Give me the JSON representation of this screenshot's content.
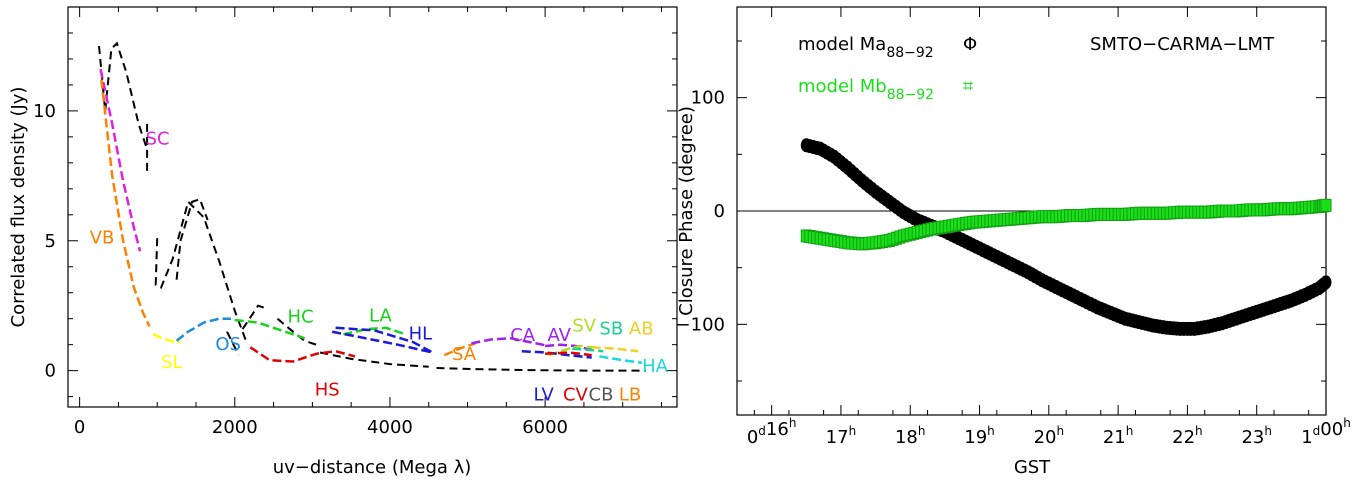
{
  "chart_data": [
    {
      "type": "line",
      "xlabel": "uv−distance (Mega λ)",
      "ylabel": "Correlated flux density (Jy)",
      "xlim": [
        -150,
        7700
      ],
      "ylim": [
        -1.4,
        14.0
      ],
      "xticks": [
        0,
        2000,
        4000,
        6000
      ],
      "yticks": [
        0,
        5,
        10
      ],
      "xtick_labels": [
        "0",
        "2000",
        "4000",
        "6000"
      ],
      "ytick_labels": [
        "0",
        "5",
        "10"
      ],
      "baselines": [
        {
          "label": "SC",
          "color": "#e020e0",
          "label_at": [
            850,
            8.7
          ],
          "points": [
            [
              270,
              11.6
            ],
            [
              420,
              9.5
            ],
            [
              560,
              7.3
            ],
            [
              700,
              5.5
            ],
            [
              780,
              4.6
            ]
          ]
        },
        {
          "label": "VB",
          "color": "#ff8000",
          "label_at": [
            130,
            4.9
          ],
          "points": [
            [
              280,
              11.2
            ],
            [
              420,
              7.5
            ],
            [
              560,
              5.0
            ],
            [
              700,
              3.2
            ],
            [
              820,
              2.2
            ],
            [
              900,
              1.7
            ]
          ]
        },
        {
          "label": "SL",
          "color": "#ffff00",
          "label_at": [
            1050,
            0.1
          ],
          "points": [
            [
              950,
              1.4
            ],
            [
              1100,
              1.2
            ],
            [
              1250,
              1.1
            ],
            [
              1300,
              1.1
            ]
          ]
        },
        {
          "label": "OS",
          "color": "#1a8cd8",
          "label_at": [
            1750,
            0.8
          ],
          "points": [
            [
              1250,
              1.15
            ],
            [
              1400,
              1.5
            ],
            [
              1600,
              1.85
            ],
            [
              1800,
              2.0
            ],
            [
              1950,
              2.0
            ]
          ]
        },
        {
          "label": "HC",
          "color": "#19d219",
          "label_at": [
            2680,
            1.85
          ],
          "points": [
            [
              2000,
              1.95
            ],
            [
              2300,
              1.85
            ],
            [
              2600,
              1.55
            ],
            [
              2900,
              1.25
            ]
          ]
        },
        {
          "label": "HS",
          "color": "#e00000",
          "label_at": [
            3030,
            -0.95
          ],
          "points": [
            [
              2200,
              0.9
            ],
            [
              2450,
              0.4
            ],
            [
              2750,
              0.35
            ],
            [
              3050,
              0.65
            ],
            [
              3300,
              0.75
            ],
            [
              3550,
              0.55
            ]
          ]
        },
        {
          "label": "LA",
          "color": "#19d219",
          "label_at": [
            3730,
            1.9
          ],
          "points": [
            [
              3400,
              1.4
            ],
            [
              3700,
              1.6
            ],
            [
              3950,
              1.65
            ],
            [
              4200,
              1.4
            ]
          ]
        },
        {
          "label": "HL",
          "color": "#1a1ad8",
          "label_at": [
            4240,
            1.2
          ],
          "points": [
            [
              3300,
              1.65
            ],
            [
              3800,
              1.55
            ],
            [
              4300,
              1.1
            ],
            [
              4550,
              0.7
            ],
            [
              4100,
              1.0
            ],
            [
              3600,
              1.3
            ],
            [
              3250,
              1.5
            ]
          ]
        },
        {
          "label": "SA",
          "color": "#ff8000",
          "label_at": [
            4800,
            0.4
          ],
          "points": [
            [
              4700,
              0.6
            ],
            [
              4900,
              0.85
            ],
            [
              5100,
              1.05
            ]
          ]
        },
        {
          "label": "CA",
          "color": "#a020f0",
          "label_at": [
            5550,
            1.15
          ],
          "points": [
            [
              5050,
              1.05
            ],
            [
              5300,
              1.2
            ],
            [
              5550,
              1.25
            ],
            [
              5800,
              1.1
            ],
            [
              6050,
              0.95
            ]
          ]
        },
        {
          "label": "AV",
          "color": "#a020f0",
          "label_at": [
            6030,
            1.15
          ],
          "points": [
            [
              6000,
              0.95
            ],
            [
              6200,
              1.0
            ],
            [
              6400,
              0.95
            ],
            [
              6600,
              0.8
            ]
          ]
        },
        {
          "label": "SV",
          "color": "#aee020",
          "label_at": [
            6350,
            1.5
          ],
          "points": [
            [
              6050,
              0.6
            ],
            [
              6250,
              0.8
            ],
            [
              6450,
              0.95
            ],
            [
              6600,
              0.9
            ]
          ]
        },
        {
          "label": "SB",
          "color": "#19d290",
          "label_at": [
            6700,
            1.4
          ],
          "points": [
            [
              6350,
              0.85
            ],
            [
              6550,
              0.8
            ],
            [
              6750,
              0.75
            ]
          ]
        },
        {
          "label": "AB",
          "color": "#f0d020",
          "label_at": [
            7080,
            1.4
          ],
          "points": [
            [
              6600,
              0.9
            ],
            [
              6900,
              0.85
            ],
            [
              7200,
              0.75
            ]
          ]
        },
        {
          "label": "HA",
          "color": "#19d8e0",
          "label_at": [
            7250,
            -0.05
          ],
          "points": [
            [
              6700,
              0.55
            ],
            [
              7000,
              0.4
            ],
            [
              7250,
              0.3
            ]
          ]
        },
        {
          "label": "LV",
          "color": "#1a1ad8",
          "label_at": [
            5850,
            -1.15
          ],
          "points": [
            [
              5700,
              0.75
            ],
            [
              6000,
              0.7
            ],
            [
              6300,
              0.6
            ],
            [
              6600,
              0.5
            ]
          ]
        },
        {
          "label": "CV",
          "color": "#e00000",
          "label_at": [
            6230,
            -1.15
          ],
          "points": [
            [
              6000,
              0.65
            ],
            [
              6300,
              0.7
            ],
            [
              6600,
              0.6
            ]
          ]
        },
        {
          "label": "CB",
          "color": "#555555",
          "label_at": [
            6560,
            -1.15
          ],
          "points": []
        },
        {
          "label": "LB",
          "color": "#ff8000",
          "label_at": [
            6950,
            -1.15
          ],
          "points": []
        }
      ],
      "black_curves": [
        [
          [
            250,
            12.5
          ],
          [
            330,
            10.0
          ],
          [
            410,
            12.4
          ],
          [
            480,
            12.6
          ],
          [
            600,
            11.5
          ],
          [
            760,
            9.5
          ],
          [
            860,
            8.6
          ]
        ],
        [
          [
            870,
            9.5
          ],
          [
            870,
            7.5
          ]
        ],
        [
          [
            1000,
            5.1
          ],
          [
            980,
            3.3
          ],
          [
            1050,
            3.2
          ],
          [
            1200,
            4.3
          ],
          [
            1400,
            6.5
          ],
          [
            1600,
            5.9
          ],
          [
            1800,
            4.2
          ],
          [
            2000,
            2.3
          ],
          [
            2100,
            1.5
          ],
          [
            2150,
            1.1
          ]
        ],
        [
          [
            1250,
            3.5
          ],
          [
            1300,
            5.0
          ],
          [
            1450,
            6.5
          ],
          [
            1550,
            6.6
          ],
          [
            1650,
            5.8
          ]
        ],
        [
          [
            1900,
            1.5
          ],
          [
            2000,
            0.9
          ],
          [
            2050,
            0.6
          ]
        ],
        [
          [
            2100,
            1.6
          ],
          [
            2300,
            2.5
          ],
          [
            2400,
            2.4
          ]
        ],
        [
          [
            2550,
            2.0
          ],
          [
            2750,
            1.5
          ],
          [
            2900,
            1.15
          ],
          [
            3100,
            0.95
          ]
        ],
        [
          [
            3100,
            0.7
          ],
          [
            3500,
            0.45
          ],
          [
            4000,
            0.25
          ],
          [
            4500,
            0.15
          ]
        ],
        [
          [
            4600,
            0.1
          ],
          [
            5200,
            0.05
          ],
          [
            5800,
            0.02
          ],
          [
            6500,
            0.0
          ],
          [
            7300,
            0.0
          ]
        ]
      ]
    },
    {
      "type": "scatter",
      "xlabel": "GST",
      "ylabel": "Closure Phase (degree)",
      "xlim": [
        15.5,
        24.0
      ],
      "ylim": [
        -180,
        180
      ],
      "yticks": [
        -100,
        0,
        100
      ],
      "ytick_labels": [
        "−100",
        "0",
        "100"
      ],
      "xticks": [
        16,
        17,
        18,
        19,
        20,
        21,
        22,
        23,
        24
      ],
      "xtick_labels": [
        "0d16h",
        "17h",
        "18h",
        "19h",
        "20h",
        "21h",
        "22h",
        "23h",
        "1d00h"
      ],
      "annotation": "SMTO−CARMA−LMT",
      "series": [
        {
          "name": "model Ma88−92",
          "color": "#000000",
          "marker_symbol": "Φ",
          "x": [
            16.5,
            16.7,
            16.9,
            17.1,
            17.3,
            17.5,
            17.7,
            17.9,
            18.1,
            18.3,
            18.5,
            18.7,
            18.9,
            19.1,
            19.3,
            19.5,
            19.7,
            19.9,
            20.1,
            20.3,
            20.5,
            20.7,
            20.9,
            21.1,
            21.3,
            21.5,
            21.7,
            21.9,
            22.1,
            22.3,
            22.5,
            22.7,
            22.9,
            23.1,
            23.3,
            23.5,
            23.7,
            23.9,
            24.0
          ],
          "y": [
            58,
            55,
            48,
            38,
            27,
            17,
            8,
            -1,
            -8,
            -13,
            -18,
            -24,
            -30,
            -36,
            -42,
            -48,
            -54,
            -61,
            -67,
            -73,
            -79,
            -85,
            -90,
            -95,
            -98,
            -101,
            -103,
            -104,
            -104,
            -102,
            -99,
            -95,
            -91,
            -87,
            -83,
            -79,
            -74,
            -68,
            -63
          ]
        },
        {
          "name": "model Mb88−92",
          "color": "#19e019",
          "marker_symbol": "⌗",
          "x": [
            16.5,
            16.7,
            16.9,
            17.1,
            17.3,
            17.5,
            17.7,
            17.9,
            18.1,
            18.3,
            18.5,
            18.7,
            18.9,
            19.1,
            19.3,
            19.5,
            19.7,
            19.9,
            20.1,
            20.3,
            20.5,
            20.7,
            20.9,
            21.1,
            21.3,
            21.5,
            21.7,
            21.9,
            22.1,
            22.3,
            22.5,
            22.7,
            22.9,
            23.1,
            23.3,
            23.5,
            23.7,
            23.9,
            24.0
          ],
          "y": [
            -22,
            -24,
            -26,
            -28,
            -29,
            -28,
            -26,
            -22,
            -19,
            -16,
            -14,
            -12,
            -10,
            -9,
            -8,
            -7,
            -6,
            -5,
            -5,
            -4,
            -4,
            -3,
            -3,
            -3,
            -2,
            -2,
            -2,
            -1,
            -1,
            -1,
            0,
            0,
            1,
            1,
            2,
            2,
            3,
            4,
            5
          ]
        }
      ],
      "legend": [
        {
          "text": "model Ma",
          "sub": "88−92",
          "symbol": "Φ",
          "color": "#000000"
        },
        {
          "text": "model Mb",
          "sub": "88−92",
          "symbol": "⌗",
          "color": "#19e019"
        }
      ]
    }
  ]
}
